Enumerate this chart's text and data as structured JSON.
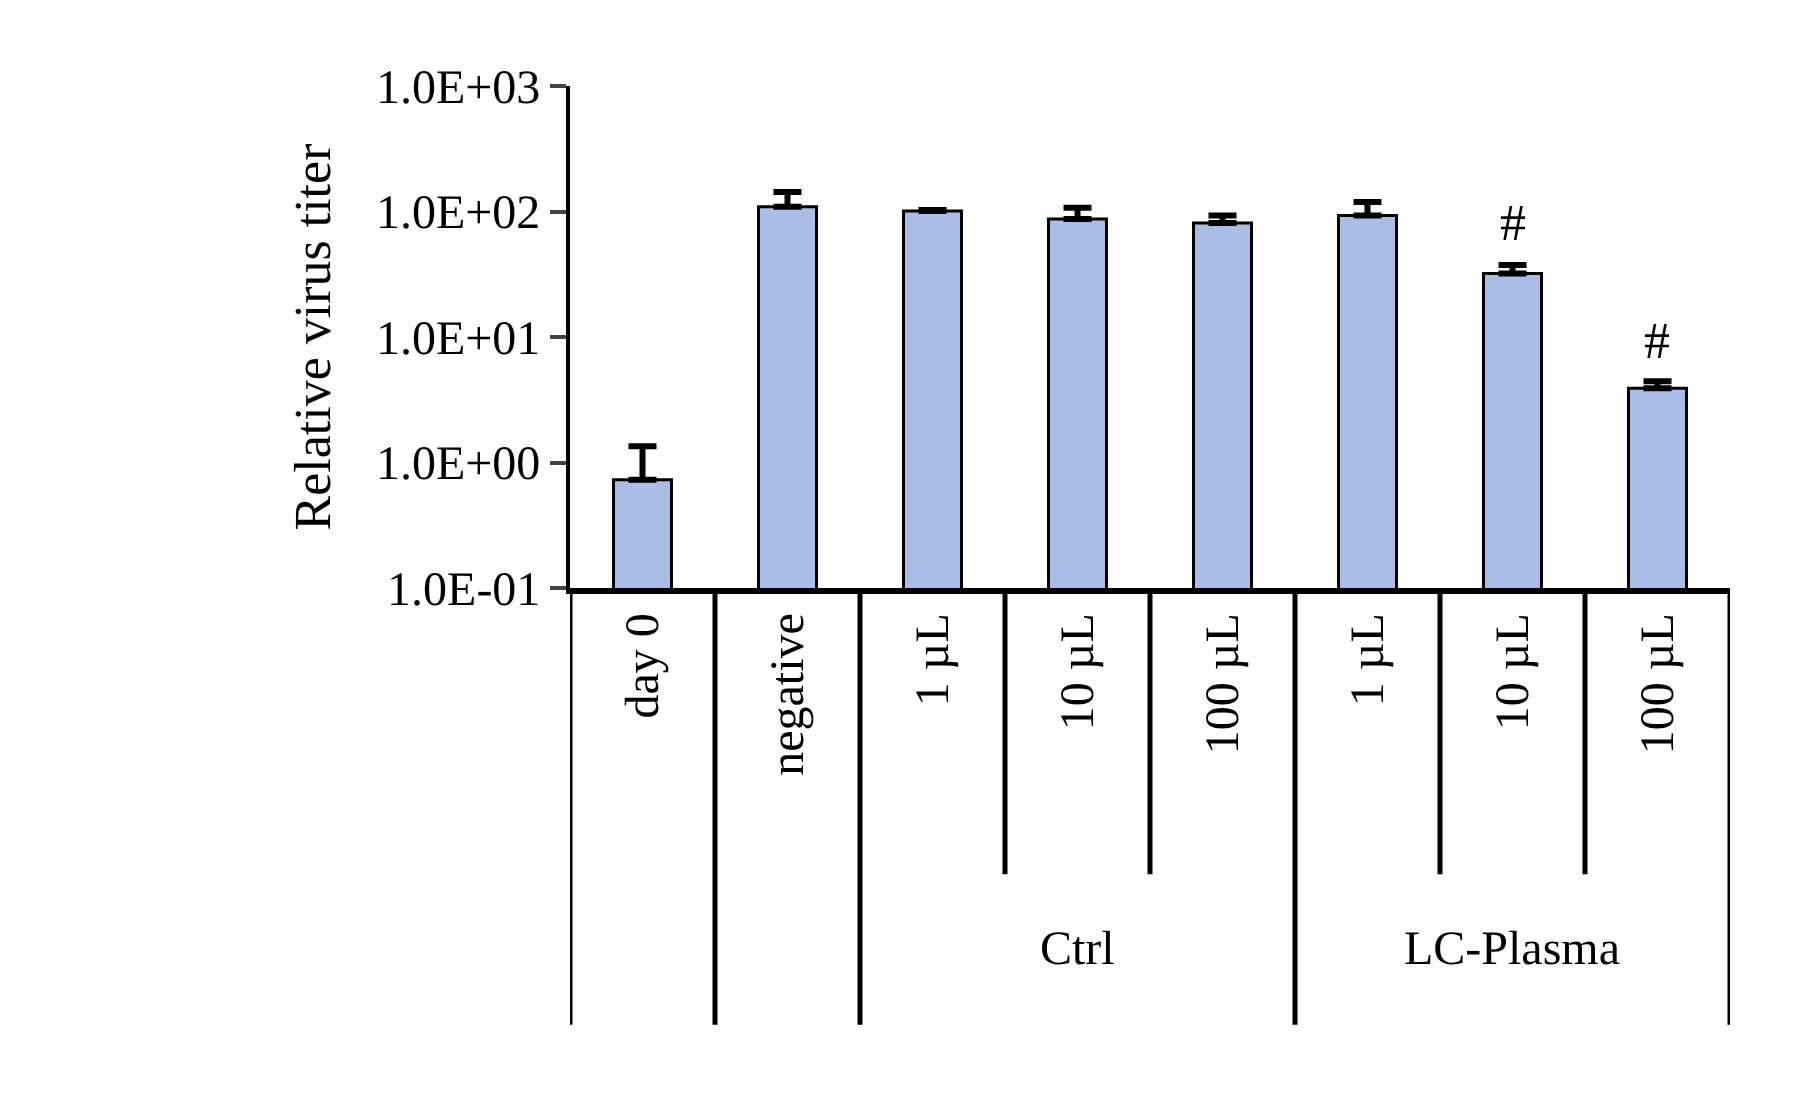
{
  "chart_data": {
    "type": "bar",
    "ylabel": "Relative virus titer",
    "log": "y",
    "legend": false,
    "categories": [
      "day 0",
      "negative",
      "1 µL",
      "10 µL",
      "100 µL",
      "1 µL",
      "10 µL",
      "100 µL"
    ],
    "series": [
      {
        "color": "#a9bde6",
        "values": [
          0.73,
          109,
          101,
          87,
          81,
          93,
          32,
          3.9
        ],
        "errors": [
          [
            0.73,
            1.35
          ],
          [
            109,
            143
          ],
          [
            101,
            103
          ],
          [
            87,
            107
          ],
          [
            81,
            93
          ],
          [
            93,
            119
          ],
          [
            32,
            37.5
          ],
          [
            3.9,
            4.45
          ]
        ]
      }
    ],
    "ylim": [
      0.1,
      1000
    ],
    "yticks": [
      {
        "value": 0.1,
        "label": "1.0E-01"
      },
      {
        "value": 1,
        "label": "1.0E+00"
      },
      {
        "value": 10,
        "label": "1.0E+01"
      },
      {
        "value": 100,
        "label": "1.0E+02"
      },
      {
        "value": 1000,
        "label": "1.0E+03"
      }
    ],
    "annotations": [
      "Ctrl",
      "LC-Plasma",
      "#",
      "#"
    ]
  }
}
